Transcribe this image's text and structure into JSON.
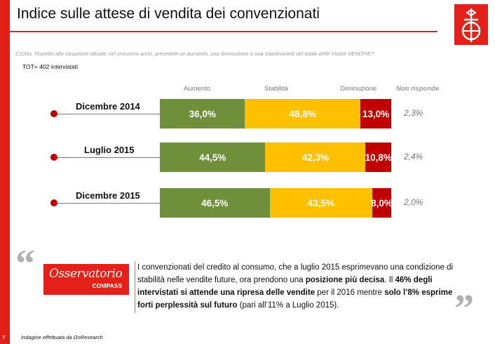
{
  "title": "Indice sulle attese di vendita dei convenzionati",
  "question": "C12bis.  Rispetto alla situazione attuale, nel prossimo anno,  prevedete un aumento, una diminuzione  o una stazionarietà del totale delle Vostre VENDITE?",
  "tot": "TOT= 402 intervistati",
  "colors": {
    "accent": "#e32119",
    "aumento": "#6f8f3a",
    "stabilita": "#ffc000",
    "diminuzione": "#c00000"
  },
  "chart_data": {
    "type": "bar",
    "orientation": "horizontal",
    "stacked": true,
    "percent": true,
    "categories": [
      "Dicembre 2014",
      "Luglio 2015",
      "Dicembre 2015"
    ],
    "series": [
      {
        "name": "Aumento",
        "values": [
          36.0,
          44.5,
          46.5
        ],
        "labels": [
          "36,0%",
          "44,5%",
          "46,5%"
        ]
      },
      {
        "name": "Stabilità",
        "values": [
          48.8,
          42.3,
          43.5
        ],
        "labels": [
          "48,8%",
          "42,3%",
          "43,5%"
        ]
      },
      {
        "name": "Diminuzione",
        "values": [
          13.0,
          10.8,
          8.0
        ],
        "labels": [
          "13,0%",
          "10,8%",
          "8,0%"
        ]
      }
    ],
    "non_risponde": {
      "name": "Non risponde",
      "values": [
        2.3,
        2.4,
        2.0
      ],
      "labels": [
        "2,3%",
        "2,4%",
        "2,0%"
      ]
    }
  },
  "quote": {
    "logo_name": "Osservatorio",
    "logo_sub": "COMPASS",
    "open_mark": "“",
    "close_mark": "”",
    "text_1": "I convenzionati del credito al consumo, che a luglio 2015 esprimevano una condizione di stabilità nelle  vendite future, ora prendono una ",
    "bold_1": "posizione più decisa",
    "text_2": ". Il ",
    "bold_2": "46% degli intervistati si attende una ripresa delle vendite",
    "text_3": " per il 2016 mentre ",
    "bold_3": "solo l’8% esprime forti perplessità sul futuro",
    "text_4": " (pari all’11% a Luglio 2015)."
  },
  "footer": {
    "page_number": "7",
    "source": "Indagine effettuata da GnResearch"
  }
}
